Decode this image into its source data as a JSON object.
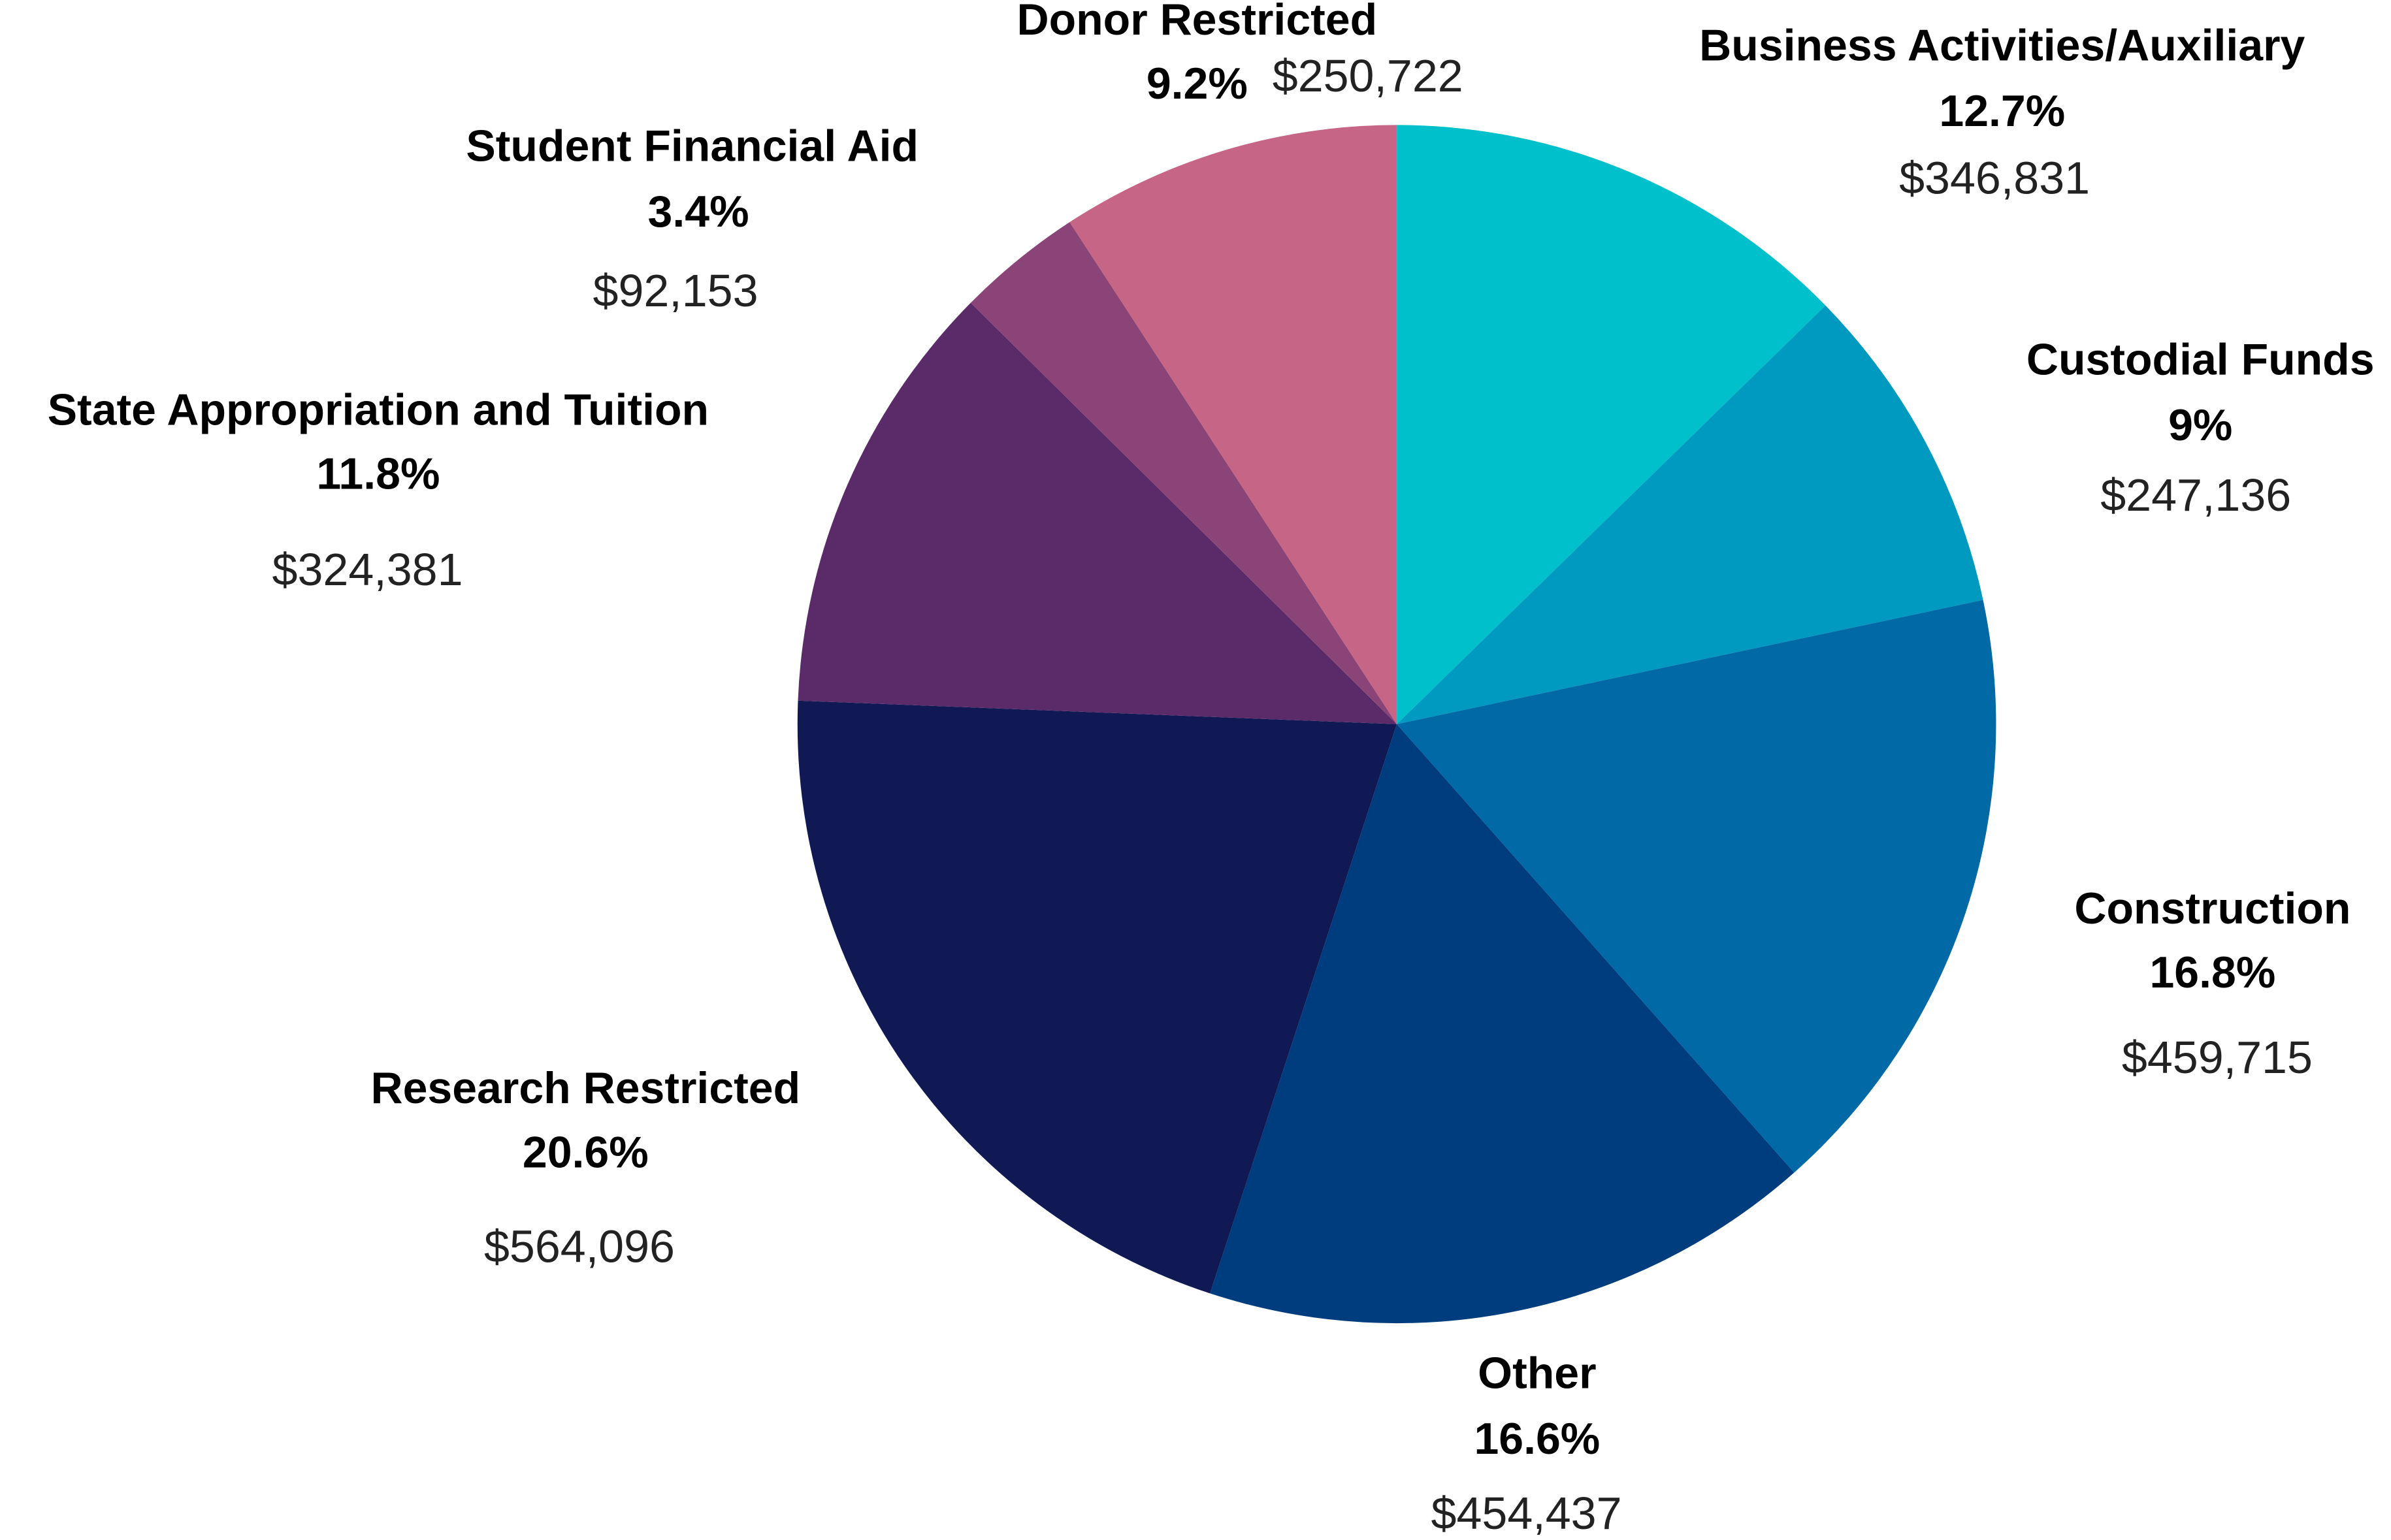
{
  "chart_data": {
    "type": "pie",
    "categories": [
      "Business Activities/Auxiliary",
      "Custodial Funds",
      "Construction",
      "Other",
      "Research Restricted",
      "State Appropriation and Tuition",
      "Student Financial Aid",
      "Donor Restricted"
    ],
    "values": [
      12.7,
      9,
      16.8,
      16.6,
      20.6,
      11.8,
      3.4,
      9.2
    ],
    "value_labels": [
      "12.7%",
      "9%",
      "16.8%",
      "16.6%",
      "20.6%",
      "11.8%",
      "3.4%",
      "9.2%"
    ],
    "amount_labels": [
      "$346,831",
      "$247,136",
      "$459,715",
      "$454,437",
      "$564,096",
      "$324,381",
      "$92,153",
      "$250,722"
    ],
    "colors": [
      "#00c0cc",
      "#0099bf",
      "#0069a6",
      "#003d7f",
      "#111955",
      "#5a2a69",
      "#8b4478",
      "#c66585"
    ]
  }
}
